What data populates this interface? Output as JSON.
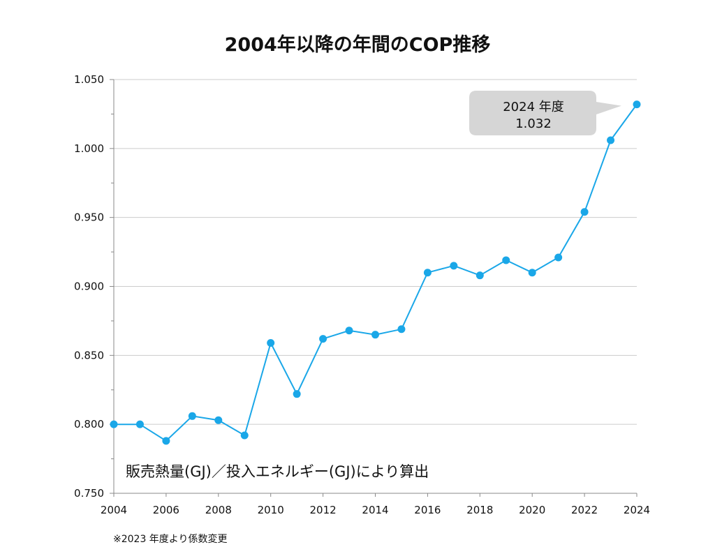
{
  "chart_data": {
    "type": "line",
    "title": "2004年以降の年間のCOP推移",
    "x": [
      2004,
      2005,
      2006,
      2007,
      2008,
      2009,
      2010,
      2011,
      2012,
      2013,
      2014,
      2015,
      2016,
      2017,
      2018,
      2019,
      2020,
      2021,
      2022,
      2023,
      2024
    ],
    "series": [
      {
        "values": [
          0.8,
          0.8,
          0.788,
          0.806,
          0.803,
          0.792,
          0.859,
          0.822,
          0.862,
          0.868,
          0.865,
          0.869,
          0.91,
          0.915,
          0.908,
          0.919,
          0.91,
          0.921,
          0.954,
          1.006,
          1.032
        ]
      }
    ],
    "xlim": [
      2004,
      2024
    ],
    "ylim": [
      0.75,
      1.05
    ],
    "x_ticks": [
      "2004",
      "2006",
      "2008",
      "2010",
      "2012",
      "2014",
      "2016",
      "2018",
      "2020",
      "2022",
      "2024"
    ],
    "y_ticks": [
      "0.750",
      "0.800",
      "0.850",
      "0.900",
      "0.950",
      "1.000",
      "1.050"
    ],
    "y_minor_step": 0.025,
    "grid": true,
    "formula_label": "販売熱量(GJ)／投入エネルギー(GJ)により算出",
    "annotation": {
      "line1": "2024 年度",
      "line2": "1.032",
      "target_x": 2024,
      "target_y": 1.032
    },
    "footnote": "※2023 年度より係数変更",
    "colors": {
      "line": "#1aa7e8",
      "marker": "#1aa7e8",
      "grid": "#cccccc",
      "axis": "#888888",
      "callout_fill": "#d6d6d6"
    }
  }
}
